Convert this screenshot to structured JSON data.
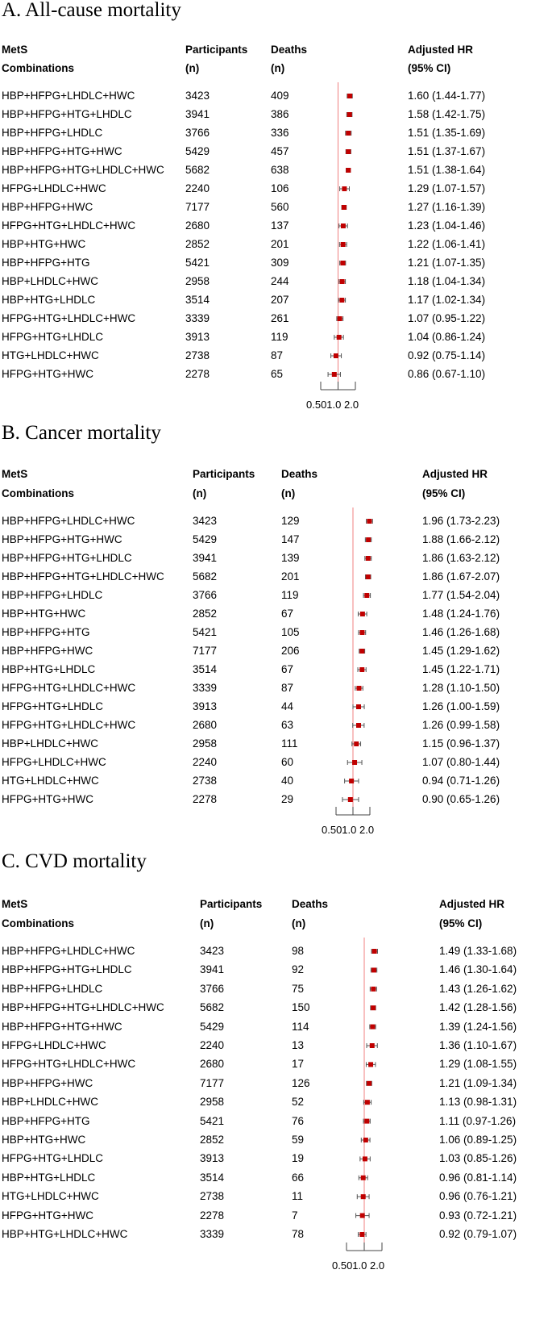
{
  "headers": {
    "col1_line1": "MetS",
    "col1_line2": "Combinations",
    "col2_line1": "Participants",
    "col2_line2": "(n)",
    "col3_line1": "Deaths",
    "col3_line2": "(n)",
    "col4_line1": "Adjusted HR",
    "col4_line2": "(95% CI)"
  },
  "colors": {
    "marker": "#c00000",
    "reference_line": "#f08080",
    "whisker": "#555555",
    "axis": "#444444"
  },
  "chart_data": [
    {
      "type": "forest",
      "title": "A. All-cause mortality",
      "scale": "log",
      "reference": 1.0,
      "xlim": [
        0.5,
        2.0
      ],
      "ticks": [
        0.5,
        1.0,
        2.0
      ],
      "tick_labels_text": "0.501.0 2.0",
      "rows": [
        {
          "label": "HBP+HFPG+LHDLC+HWC",
          "participants": "3423",
          "deaths": "409",
          "hr": 1.6,
          "lo": 1.44,
          "hi": 1.77,
          "hr_text": "1.60 (1.44-1.77)"
        },
        {
          "label": "HBP+HFPG+HTG+LHDLC",
          "participants": "3941",
          "deaths": "386",
          "hr": 1.58,
          "lo": 1.42,
          "hi": 1.75,
          "hr_text": "1.58 (1.42-1.75)"
        },
        {
          "label": "HBP+HFPG+LHDLC",
          "participants": "3766",
          "deaths": "336",
          "hr": 1.51,
          "lo": 1.35,
          "hi": 1.69,
          "hr_text": "1.51 (1.35-1.69)"
        },
        {
          "label": "HBP+HFPG+HTG+HWC",
          "participants": "5429",
          "deaths": "457",
          "hr": 1.51,
          "lo": 1.37,
          "hi": 1.67,
          "hr_text": "1.51 (1.37-1.67)"
        },
        {
          "label": "HBP+HFPG+HTG+LHDLC+HWC",
          "participants": "5682",
          "deaths": "638",
          "hr": 1.51,
          "lo": 1.38,
          "hi": 1.64,
          "hr_text": "1.51 (1.38-1.64)"
        },
        {
          "label": "HFPG+LHDLC+HWC",
          "participants": "2240",
          "deaths": "106",
          "hr": 1.29,
          "lo": 1.07,
          "hi": 1.57,
          "hr_text": "1.29 (1.07-1.57)"
        },
        {
          "label": "HBP+HFPG+HWC",
          "participants": "7177",
          "deaths": "560",
          "hr": 1.27,
          "lo": 1.16,
          "hi": 1.39,
          "hr_text": "1.27 (1.16-1.39)"
        },
        {
          "label": "HFPG+HTG+LHDLC+HWC",
          "participants": "2680",
          "deaths": "137",
          "hr": 1.23,
          "lo": 1.04,
          "hi": 1.46,
          "hr_text": "1.23 (1.04-1.46)"
        },
        {
          "label": "HBP+HTG+HWC",
          "participants": "2852",
          "deaths": "201",
          "hr": 1.22,
          "lo": 1.06,
          "hi": 1.41,
          "hr_text": "1.22 (1.06-1.41)"
        },
        {
          "label": "HBP+HFPG+HTG",
          "participants": "5421",
          "deaths": "309",
          "hr": 1.21,
          "lo": 1.07,
          "hi": 1.35,
          "hr_text": "1.21 (1.07-1.35)"
        },
        {
          "label": "HBP+LHDLC+HWC",
          "participants": "2958",
          "deaths": "244",
          "hr": 1.18,
          "lo": 1.04,
          "hi": 1.34,
          "hr_text": "1.18 (1.04-1.34)"
        },
        {
          "label": "HBP+HTG+LHDLC",
          "participants": "3514",
          "deaths": "207",
          "hr": 1.17,
          "lo": 1.02,
          "hi": 1.34,
          "hr_text": "1.17 (1.02-1.34)"
        },
        {
          "label": "HFPG+HTG+LHDLC+HWC",
          "participants": "3339",
          "deaths": "261",
          "hr": 1.07,
          "lo": 0.95,
          "hi": 1.22,
          "hr_text": "1.07 (0.95-1.22)"
        },
        {
          "label": "HFPG+HTG+LHDLC",
          "participants": "3913",
          "deaths": "119",
          "hr": 1.04,
          "lo": 0.86,
          "hi": 1.24,
          "hr_text": "1.04 (0.86-1.24)"
        },
        {
          "label": "HTG+LHDLC+HWC",
          "participants": "2738",
          "deaths": "87",
          "hr": 0.92,
          "lo": 0.75,
          "hi": 1.14,
          "hr_text": "0.92 (0.75-1.14)"
        },
        {
          "label": "HFPG+HTG+HWC",
          "participants": "2278",
          "deaths": "65",
          "hr": 0.86,
          "lo": 0.67,
          "hi": 1.1,
          "hr_text": "0.86 (0.67-1.10)"
        }
      ]
    },
    {
      "type": "forest",
      "title": "B. Cancer mortality",
      "scale": "log",
      "reference": 1.0,
      "xlim": [
        0.5,
        2.0
      ],
      "ticks": [
        0.5,
        1.0,
        2.0
      ],
      "tick_labels_text": "0.501.0 2.0",
      "rows": [
        {
          "label": "HBP+HFPG+LHDLC+HWC",
          "participants": "3423",
          "deaths": "129",
          "hr": 1.96,
          "lo": 1.73,
          "hi": 2.23,
          "hr_text": "1.96 (1.73-2.23)"
        },
        {
          "label": "HBP+HFPG+HTG+HWC",
          "participants": "5429",
          "deaths": "147",
          "hr": 1.88,
          "lo": 1.66,
          "hi": 2.12,
          "hr_text": "1.88 (1.66-2.12)"
        },
        {
          "label": "HBP+HFPG+HTG+LHDLC",
          "participants": "3941",
          "deaths": "139",
          "hr": 1.86,
          "lo": 1.63,
          "hi": 2.12,
          "hr_text": "1.86 (1.63-2.12)"
        },
        {
          "label": "HBP+HFPG+HTG+LHDLC+HWC",
          "participants": "5682",
          "deaths": "201",
          "hr": 1.86,
          "lo": 1.67,
          "hi": 2.07,
          "hr_text": "1.86 (1.67-2.07)"
        },
        {
          "label": "HBP+HFPG+LHDLC",
          "participants": "3766",
          "deaths": "119",
          "hr": 1.77,
          "lo": 1.54,
          "hi": 2.04,
          "hr_text": "1.77 (1.54-2.04)"
        },
        {
          "label": "HBP+HTG+HWC",
          "participants": "2852",
          "deaths": "67",
          "hr": 1.48,
          "lo": 1.24,
          "hi": 1.76,
          "hr_text": "1.48 (1.24-1.76)"
        },
        {
          "label": "HBP+HFPG+HTG",
          "participants": "5421",
          "deaths": "105",
          "hr": 1.46,
          "lo": 1.26,
          "hi": 1.68,
          "hr_text": "1.46 (1.26-1.68)"
        },
        {
          "label": "HBP+HFPG+HWC",
          "participants": "7177",
          "deaths": "206",
          "hr": 1.45,
          "lo": 1.29,
          "hi": 1.62,
          "hr_text": "1.45 (1.29-1.62)"
        },
        {
          "label": "HBP+HTG+LHDLC",
          "participants": "3514",
          "deaths": "67",
          "hr": 1.45,
          "lo": 1.22,
          "hi": 1.71,
          "hr_text": "1.45 (1.22-1.71)"
        },
        {
          "label": "HFPG+HTG+LHDLC+HWC",
          "participants": "3339",
          "deaths": "87",
          "hr": 1.28,
          "lo": 1.1,
          "hi": 1.5,
          "hr_text": "1.28 (1.10-1.50)"
        },
        {
          "label": "HFPG+HTG+LHDLC",
          "participants": "3913",
          "deaths": "44",
          "hr": 1.26,
          "lo": 1.0,
          "hi": 1.59,
          "hr_text": "1.26 (1.00-1.59)"
        },
        {
          "label": "HFPG+HTG+LHDLC+HWC",
          "participants": "2680",
          "deaths": "63",
          "hr": 1.26,
          "lo": 0.99,
          "hi": 1.58,
          "hr_text": "1.26 (0.99-1.58)"
        },
        {
          "label": "HBP+LHDLC+HWC",
          "participants": "2958",
          "deaths": "111",
          "hr": 1.15,
          "lo": 0.96,
          "hi": 1.37,
          "hr_text": "1.15 (0.96-1.37)"
        },
        {
          "label": "HFPG+LHDLC+HWC",
          "participants": "2240",
          "deaths": "60",
          "hr": 1.07,
          "lo": 0.8,
          "hi": 1.44,
          "hr_text": "1.07 (0.80-1.44)"
        },
        {
          "label": "HTG+LHDLC+HWC",
          "participants": "2738",
          "deaths": "40",
          "hr": 0.94,
          "lo": 0.71,
          "hi": 1.26,
          "hr_text": "0.94 (0.71-1.26)"
        },
        {
          "label": "HFPG+HTG+HWC",
          "participants": "2278",
          "deaths": "29",
          "hr": 0.9,
          "lo": 0.65,
          "hi": 1.26,
          "hr_text": "0.90 (0.65-1.26)"
        }
      ]
    },
    {
      "type": "forest",
      "title": "C. CVD mortality",
      "scale": "log",
      "reference": 1.0,
      "xlim": [
        0.5,
        2.0
      ],
      "ticks": [
        0.5,
        1.0,
        2.0
      ],
      "tick_labels_text": "0.501.0 2.0",
      "rows": [
        {
          "label": "HBP+HFPG+LHDLC+HWC",
          "participants": "3423",
          "deaths": "98",
          "hr": 1.49,
          "lo": 1.33,
          "hi": 1.68,
          "hr_text": "1.49 (1.33-1.68)"
        },
        {
          "label": "HBP+HFPG+HTG+LHDLC",
          "participants": "3941",
          "deaths": "92",
          "hr": 1.46,
          "lo": 1.3,
          "hi": 1.64,
          "hr_text": "1.46 (1.30-1.64)"
        },
        {
          "label": "HBP+HFPG+LHDLC",
          "participants": "3766",
          "deaths": "75",
          "hr": 1.43,
          "lo": 1.26,
          "hi": 1.62,
          "hr_text": "1.43 (1.26-1.62)"
        },
        {
          "label": "HBP+HFPG+HTG+LHDLC+HWC",
          "participants": "5682",
          "deaths": "150",
          "hr": 1.42,
          "lo": 1.28,
          "hi": 1.56,
          "hr_text": "1.42 (1.28-1.56)"
        },
        {
          "label": "HBP+HFPG+HTG+HWC",
          "participants": "5429",
          "deaths": "114",
          "hr": 1.39,
          "lo": 1.24,
          "hi": 1.56,
          "hr_text": "1.39 (1.24-1.56)"
        },
        {
          "label": "HFPG+LHDLC+HWC",
          "participants": "2240",
          "deaths": "13",
          "hr": 1.36,
          "lo": 1.1,
          "hi": 1.67,
          "hr_text": "1.36 (1.10-1.67)"
        },
        {
          "label": "HFPG+HTG+LHDLC+HWC",
          "participants": "2680",
          "deaths": "17",
          "hr": 1.29,
          "lo": 1.08,
          "hi": 1.55,
          "hr_text": "1.29 (1.08-1.55)"
        },
        {
          "label": "HBP+HFPG+HWC",
          "participants": "7177",
          "deaths": "126",
          "hr": 1.21,
          "lo": 1.09,
          "hi": 1.34,
          "hr_text": "1.21 (1.09-1.34)"
        },
        {
          "label": "HBP+LHDLC+HWC",
          "participants": "2958",
          "deaths": "52",
          "hr": 1.13,
          "lo": 0.98,
          "hi": 1.31,
          "hr_text": "1.13 (0.98-1.31)"
        },
        {
          "label": "HBP+HFPG+HTG",
          "participants": "5421",
          "deaths": "76",
          "hr": 1.11,
          "lo": 0.97,
          "hi": 1.26,
          "hr_text": "1.11 (0.97-1.26)"
        },
        {
          "label": "HBP+HTG+HWC",
          "participants": "2852",
          "deaths": "59",
          "hr": 1.06,
          "lo": 0.89,
          "hi": 1.25,
          "hr_text": "1.06 (0.89-1.25)"
        },
        {
          "label": "HFPG+HTG+LHDLC",
          "participants": "3913",
          "deaths": "19",
          "hr": 1.03,
          "lo": 0.85,
          "hi": 1.26,
          "hr_text": "1.03 (0.85-1.26)"
        },
        {
          "label": "HBP+HTG+LHDLC",
          "participants": "3514",
          "deaths": "66",
          "hr": 0.96,
          "lo": 0.81,
          "hi": 1.14,
          "hr_text": "0.96 (0.81-1.14)"
        },
        {
          "label": "HTG+LHDLC+HWC",
          "participants": "2738",
          "deaths": "11",
          "hr": 0.96,
          "lo": 0.76,
          "hi": 1.21,
          "hr_text": "0.96 (0.76-1.21)"
        },
        {
          "label": "HFPG+HTG+HWC",
          "participants": "2278",
          "deaths": "7",
          "hr": 0.93,
          "lo": 0.72,
          "hi": 1.21,
          "hr_text": "0.93 (0.72-1.21)"
        },
        {
          "label": "HBP+HTG+LHDLC+HWC",
          "participants": "3339",
          "deaths": "78",
          "hr": 0.92,
          "lo": 0.79,
          "hi": 1.07,
          "hr_text": "0.92 (0.79-1.07)"
        }
      ]
    }
  ]
}
